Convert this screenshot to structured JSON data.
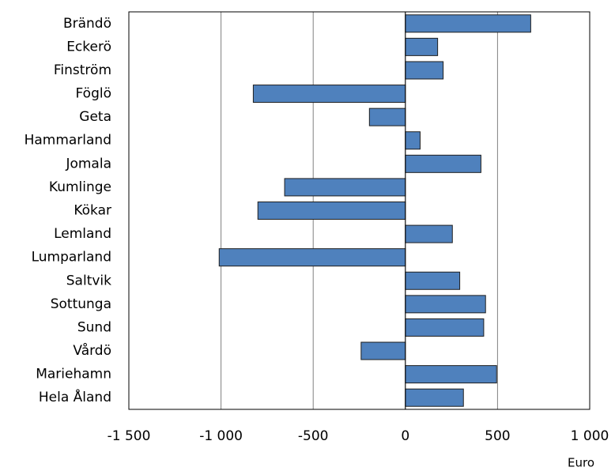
{
  "chart_data": {
    "type": "bar",
    "orientation": "horizontal",
    "categories": [
      "Brändö",
      "Eckerö",
      "Finström",
      "Föglö",
      "Geta",
      "Hammarland",
      "Jomala",
      "Kumlinge",
      "Kökar",
      "Lemland",
      "Lumparland",
      "Saltvik",
      "Sottunga",
      "Sund",
      "Vårdö",
      "Mariehamn",
      "Hela Åland"
    ],
    "values": [
      680,
      175,
      205,
      -825,
      -195,
      80,
      410,
      -655,
      -800,
      255,
      -1010,
      295,
      435,
      425,
      -240,
      495,
      315
    ],
    "color": "#4f81bd",
    "xlabel": "Euro",
    "xlim": [
      -1500,
      1000
    ],
    "xticks": [
      {
        "value": -1500,
        "label": "-1 500"
      },
      {
        "value": -1000,
        "label": "-1 000"
      },
      -500,
      0,
      500,
      {
        "value": 1000,
        "label": "1 000"
      }
    ],
    "grid": true
  }
}
